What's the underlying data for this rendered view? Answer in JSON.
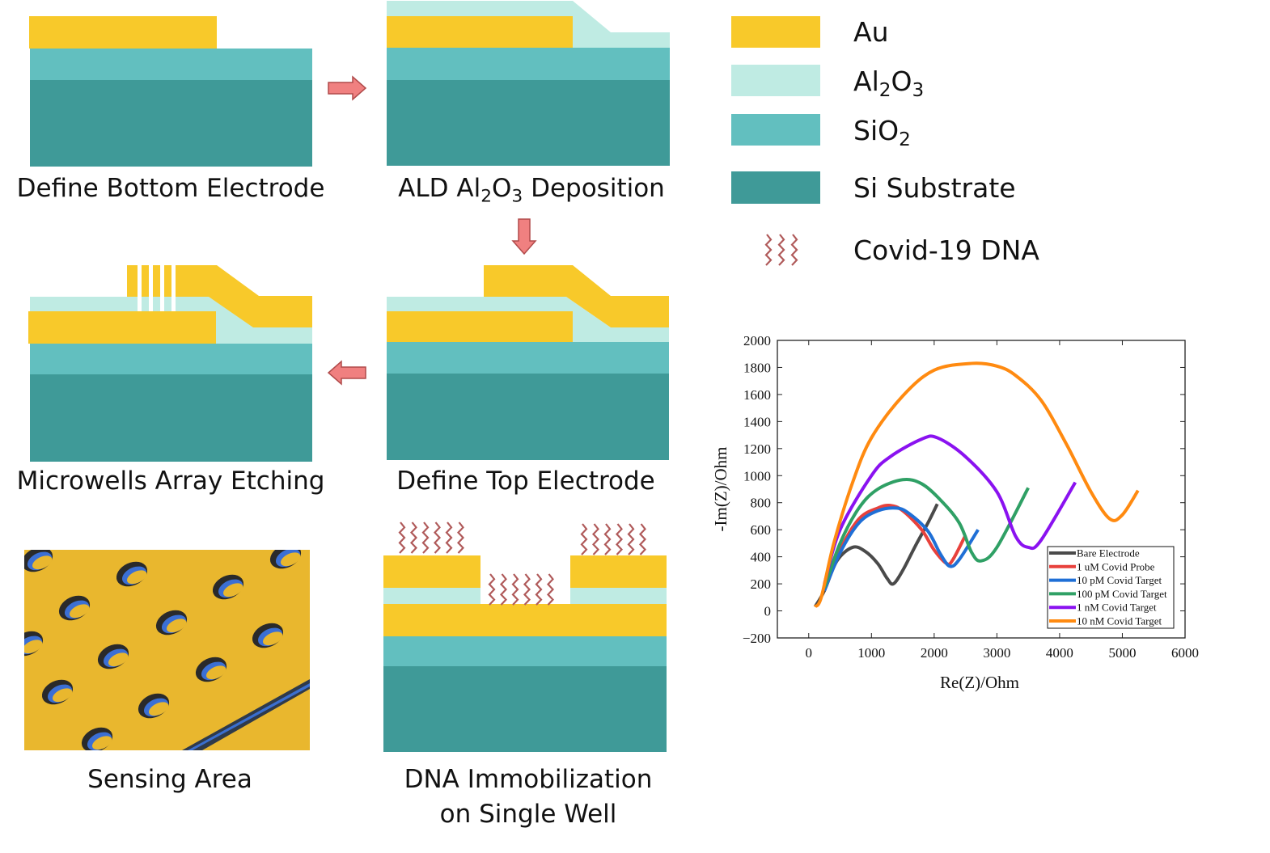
{
  "colors": {
    "au": "#F8C92A",
    "al2o3": "#BFEBE3",
    "sio2": "#62BFBF",
    "si": "#3F9A98",
    "arrow": "#F08080",
    "dna": "#B05A5A",
    "sensing_gold": "#E9B72E"
  },
  "steps": [
    {
      "label": "Define Bottom Electrode"
    },
    {
      "label_pre": "ALD Al",
      "sub1": "2",
      "mid": "O",
      "sub2": "3",
      "label_post": " Deposition"
    },
    {
      "label": "Microwells Array Etching"
    },
    {
      "label": "Define Top Electrode"
    },
    {
      "label": "Sensing Area"
    },
    {
      "label_line1": "DNA Immobilization",
      "label_line2": "on Single Well"
    }
  ],
  "legend": {
    "au": "Au",
    "al2o3": {
      "a": "Al",
      "s1": "2",
      "b": "O",
      "s2": "3"
    },
    "sio2": {
      "a": "SiO",
      "s1": "2"
    },
    "si": "Si Substrate",
    "dna": "Covid-19 DNA"
  },
  "chart_data": {
    "type": "line",
    "xlabel": "Re(Z)/Ohm",
    "ylabel": "-Im(Z)/Ohm",
    "xlim": [
      -500,
      6000
    ],
    "ylim": [
      -200,
      2000
    ],
    "xticks": [
      0,
      1000,
      2000,
      3000,
      4000,
      5000,
      6000
    ],
    "yticks": [
      -200,
      0,
      200,
      400,
      600,
      800,
      1000,
      1200,
      1400,
      1600,
      1800,
      2000
    ],
    "ytick_labels": [
      "−200",
      "0",
      "200",
      "400",
      "600",
      "800",
      "1000",
      "1200",
      "1400",
      "1600",
      "1800",
      "2000"
    ],
    "legend_position": "bottom-right",
    "grid": false,
    "series": [
      {
        "name": "Bare Electrode",
        "color": "#4A4A4A",
        "points": [
          [
            100,
            30
          ],
          [
            250,
            150
          ],
          [
            450,
            370
          ],
          [
            700,
            470
          ],
          [
            900,
            440
          ],
          [
            1100,
            350
          ],
          [
            1250,
            240
          ],
          [
            1350,
            200
          ],
          [
            1500,
            300
          ],
          [
            1700,
            480
          ],
          [
            1900,
            650
          ],
          [
            2050,
            790
          ]
        ]
      },
      {
        "name": "1 uM Covid Probe",
        "color": "#E8413C",
        "points": [
          [
            250,
            150
          ],
          [
            500,
            450
          ],
          [
            800,
            680
          ],
          [
            1100,
            760
          ],
          [
            1300,
            780
          ],
          [
            1500,
            740
          ],
          [
            1800,
            600
          ],
          [
            2000,
            450
          ],
          [
            2200,
            350
          ],
          [
            2300,
            380
          ],
          [
            2500,
            560
          ]
        ]
      },
      {
        "name": "10 pM Covid Target",
        "color": "#1F6FD6",
        "points": [
          [
            250,
            150
          ],
          [
            500,
            430
          ],
          [
            800,
            650
          ],
          [
            1100,
            740
          ],
          [
            1400,
            760
          ],
          [
            1600,
            720
          ],
          [
            1900,
            590
          ],
          [
            2100,
            420
          ],
          [
            2250,
            330
          ],
          [
            2400,
            380
          ],
          [
            2700,
            600
          ]
        ]
      },
      {
        "name": "100 pM Covid Target",
        "color": "#2FA065",
        "points": [
          [
            250,
            170
          ],
          [
            500,
            500
          ],
          [
            800,
            760
          ],
          [
            1100,
            900
          ],
          [
            1500,
            970
          ],
          [
            1800,
            940
          ],
          [
            2100,
            820
          ],
          [
            2400,
            650
          ],
          [
            2600,
            430
          ],
          [
            2750,
            370
          ],
          [
            3000,
            470
          ],
          [
            3500,
            910
          ]
        ]
      },
      {
        "name": "1 nM Covid Target",
        "color": "#8A12F0",
        "points": [
          [
            250,
            200
          ],
          [
            500,
            600
          ],
          [
            1000,
            1000
          ],
          [
            1300,
            1140
          ],
          [
            1800,
            1270
          ],
          [
            2050,
            1280
          ],
          [
            2500,
            1140
          ],
          [
            3000,
            880
          ],
          [
            3300,
            550
          ],
          [
            3500,
            470
          ],
          [
            3700,
            520
          ],
          [
            4250,
            950
          ]
        ]
      },
      {
        "name": "10 nM Covid Target",
        "color": "#FF8A10",
        "points": [
          [
            100,
            30
          ],
          [
            200,
            100
          ],
          [
            400,
            500
          ],
          [
            700,
            950
          ],
          [
            1000,
            1280
          ],
          [
            1500,
            1590
          ],
          [
            2000,
            1780
          ],
          [
            2600,
            1830
          ],
          [
            3000,
            1810
          ],
          [
            3300,
            1740
          ],
          [
            3700,
            1560
          ],
          [
            4100,
            1240
          ],
          [
            4500,
            880
          ],
          [
            4800,
            680
          ],
          [
            5000,
            710
          ],
          [
            5250,
            890
          ]
        ]
      }
    ]
  }
}
